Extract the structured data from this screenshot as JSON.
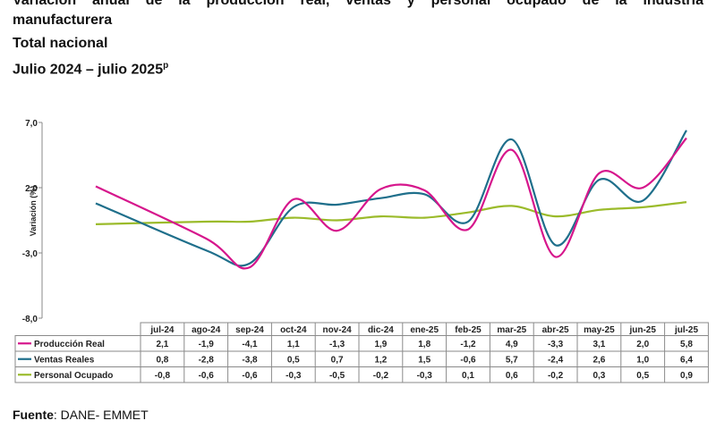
{
  "header": {
    "line1": "Variación anual de la producción real, ventas y personal ocupado de la industria",
    "line2": "manufacturera",
    "line3": "Total nacional",
    "line4": "Julio 2024 – julio 2025",
    "line4_sup": "p"
  },
  "source": {
    "label": "Fuente",
    "text": ": DANE- EMMET"
  },
  "chart_data": {
    "type": "line",
    "ylabel": "Variación (%)",
    "ylim": [
      -8,
      7
    ],
    "yticks": [
      7,
      2,
      -3,
      -8
    ],
    "ytick_labels": [
      "7,0",
      "2,0",
      "-3,0",
      "-8,0"
    ],
    "categories": [
      "jul-24",
      "ago-24",
      "sep-24",
      "oct-24",
      "nov-24",
      "dic-24",
      "ene-25",
      "feb-25",
      "mar-25",
      "abr-25",
      "may-25",
      "jun-25",
      "jul-25"
    ],
    "series": [
      {
        "name": "Producción Real",
        "color": "#d6168c",
        "values": [
          2.1,
          -1.9,
          -4.1,
          1.1,
          -1.3,
          1.9,
          1.8,
          -1.2,
          4.9,
          -3.3,
          3.1,
          2.0,
          5.8
        ],
        "labels": [
          "2,1",
          "-1,9",
          "-4,1",
          "1,1",
          "-1,3",
          "1,9",
          "1,8",
          "-1,2",
          "4,9",
          "-3,3",
          "3,1",
          "2,0",
          "5,8"
        ]
      },
      {
        "name": "Ventas Reales",
        "color": "#1f6f8b",
        "values": [
          0.8,
          -2.8,
          -3.8,
          0.5,
          0.7,
          1.2,
          1.5,
          -0.6,
          5.7,
          -2.4,
          2.6,
          1.0,
          6.4
        ],
        "labels": [
          "0,8",
          "-2,8",
          "-3,8",
          "0,5",
          "0,7",
          "1,2",
          "1,5",
          "-0,6",
          "5,7",
          "-2,4",
          "2,6",
          "1,0",
          "6,4"
        ]
      },
      {
        "name": "Personal Ocupado",
        "color": "#9bbb2b",
        "values": [
          -0.8,
          -0.6,
          -0.6,
          -0.3,
          -0.5,
          -0.2,
          -0.3,
          0.1,
          0.6,
          -0.2,
          0.3,
          0.5,
          0.9
        ],
        "labels": [
          "-0,8",
          "-0,6",
          "-0,6",
          "-0,3",
          "-0,5",
          "-0,2",
          "-0,3",
          "0,1",
          "0,6",
          "-0,2",
          "0,3",
          "0,5",
          "0,9"
        ]
      }
    ]
  }
}
